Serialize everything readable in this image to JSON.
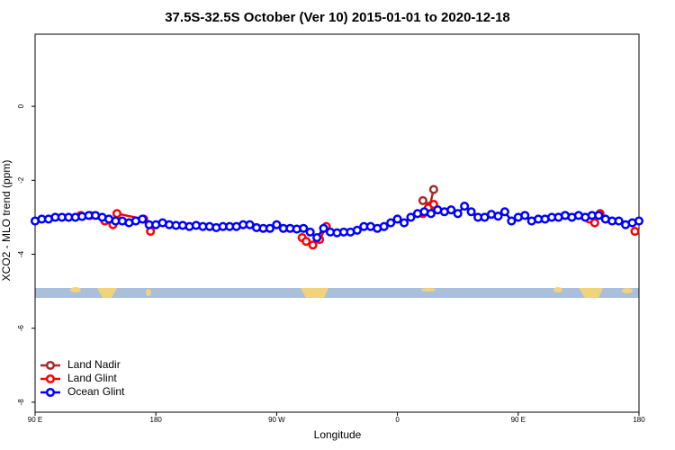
{
  "chart_data": {
    "type": "line",
    "title": "37.5S-32.5S October (Ver 10)   2015-01-01 to 2020-12-18",
    "x_label": "Longitude",
    "y_label": "XCO2 - MLO trend (ppm)",
    "xlim": [
      90,
      540
    ],
    "ylim": [
      -8.27,
      1.95
    ],
    "xticks": [
      {
        "value": 90,
        "label": "90 E"
      },
      180,
      {
        "value": 270,
        "label": "90 W"
      },
      {
        "value": 360,
        "label": "0"
      },
      {
        "value": 450,
        "label": "90 E"
      },
      {
        "value": 540,
        "label": "180"
      }
    ],
    "yticks": [
      0,
      -2,
      -4,
      -6,
      -8
    ],
    "legend_loc": "bottom left",
    "series": [
      {
        "name": "Land Nadir",
        "color": "#a52a2a",
        "x": [
          379,
          384,
          387
        ],
        "values": [
          -2.55,
          -2.7,
          -2.25
        ]
      },
      {
        "name": "Land Glint",
        "color": "#ff0000",
        "x": [
          124,
          131,
          142,
          148,
          151,
          171,
          176,
          null,
          289,
          292,
          297,
          302,
          307,
          null,
          379,
          383,
          387,
          null,
          480,
          485,
          503,
          507,
          511,
          null,
          537
        ],
        "values": [
          -2.95,
          -2.95,
          -3.1,
          -3.2,
          -2.9,
          -3.05,
          -3.38,
          null,
          -3.55,
          -3.65,
          -3.75,
          -3.6,
          -3.25,
          null,
          -2.9,
          -2.75,
          -2.65,
          null,
          -3.0,
          -2.95,
          -3.05,
          -3.15,
          -2.9,
          null,
          -3.38
        ]
      },
      {
        "name": "Ocean Glint",
        "color": "#0000ff",
        "x": [
          90,
          95,
          100,
          105,
          110,
          115,
          120,
          125,
          130,
          135,
          140,
          145,
          150,
          155,
          160,
          165,
          170,
          175,
          180,
          185,
          190,
          195,
          200,
          205,
          210,
          215,
          220,
          225,
          230,
          235,
          240,
          245,
          250,
          255,
          260,
          265,
          270,
          275,
          280,
          285,
          290,
          295,
          300,
          305,
          310,
          315,
          320,
          325,
          330,
          335,
          340,
          345,
          350,
          355,
          360,
          365,
          370,
          375,
          380,
          385,
          390,
          395,
          400,
          405,
          410,
          415,
          420,
          425,
          430,
          435,
          440,
          445,
          450,
          455,
          460,
          465,
          470,
          475,
          480,
          485,
          490,
          495,
          500,
          505,
          510,
          515,
          520,
          525,
          530,
          535,
          540
        ],
        "values": [
          -3.1,
          -3.05,
          -3.05,
          -3.0,
          -3.0,
          -3.0,
          -3.0,
          -2.98,
          -2.95,
          -2.95,
          -3.0,
          -3.05,
          -3.1,
          -3.1,
          -3.15,
          -3.1,
          -3.05,
          -3.2,
          -3.2,
          -3.15,
          -3.2,
          -3.22,
          -3.22,
          -3.25,
          -3.22,
          -3.25,
          -3.25,
          -3.28,
          -3.25,
          -3.25,
          -3.25,
          -3.2,
          -3.2,
          -3.28,
          -3.3,
          -3.3,
          -3.2,
          -3.3,
          -3.3,
          -3.32,
          -3.3,
          -3.4,
          -3.55,
          -3.3,
          -3.4,
          -3.42,
          -3.4,
          -3.4,
          -3.35,
          -3.25,
          -3.25,
          -3.3,
          -3.25,
          -3.15,
          -3.05,
          -3.15,
          -3.0,
          -2.9,
          -2.85,
          -2.9,
          -2.8,
          -2.85,
          -2.8,
          -2.9,
          -2.7,
          -2.85,
          -3.0,
          -3.0,
          -2.92,
          -2.97,
          -2.85,
          -3.1,
          -3.0,
          -2.95,
          -3.1,
          -3.05,
          -3.05,
          -3.0,
          -3.0,
          -2.95,
          -3.0,
          -2.95,
          -3.0,
          -2.95,
          -2.95,
          -3.05,
          -3.1,
          -3.1,
          -3.2,
          -3.15,
          -3.1
        ]
      }
    ]
  }
}
